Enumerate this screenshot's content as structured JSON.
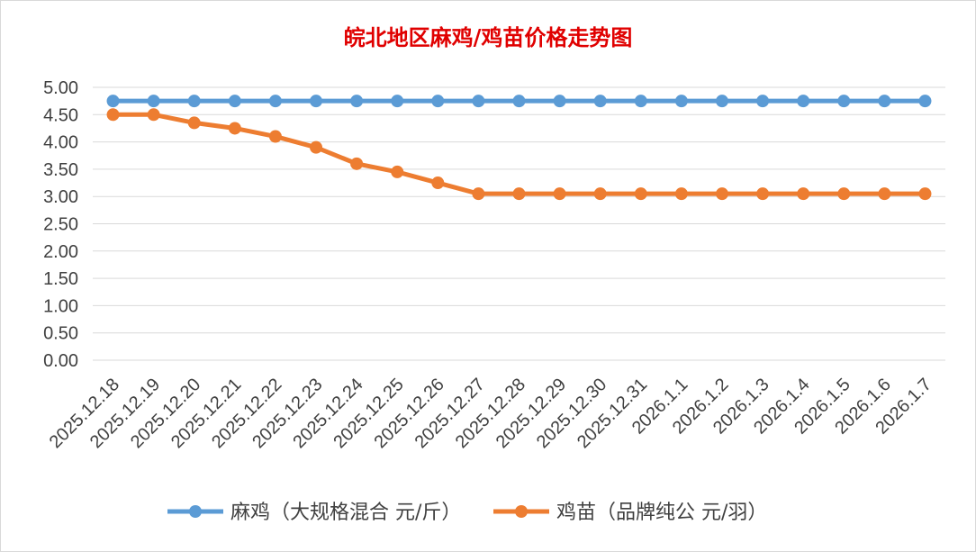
{
  "chart_data": {
    "type": "line",
    "title": "皖北地区麻鸡/鸡苗价格走势图",
    "xlabel": "",
    "ylabel": "",
    "categories": [
      "2025.12.18",
      "2025.12.19",
      "2025.12.20",
      "2025.12.21",
      "2025.12.22",
      "2025.12.23",
      "2025.12.24",
      "2025.12.25",
      "2025.12.26",
      "2025.12.27",
      "2025.12.28",
      "2025.12.29",
      "2025.12.30",
      "2025.12.31",
      "2026.1.1",
      "2026.1.2",
      "2026.1.3",
      "2026.1.4",
      "2026.1.5",
      "2026.1.6",
      "2026.1.7"
    ],
    "ylim": [
      0,
      5
    ],
    "yticks": [
      "0.00",
      "0.50",
      "1.00",
      "1.50",
      "2.00",
      "2.50",
      "3.00",
      "3.50",
      "4.00",
      "4.50",
      "5.00"
    ],
    "grid": true,
    "legend_position": "bottom",
    "series": [
      {
        "name": "麻鸡（大规格混合 元/斤）",
        "color": "#5B9BD5",
        "values": [
          4.75,
          4.75,
          4.75,
          4.75,
          4.75,
          4.75,
          4.75,
          4.75,
          4.75,
          4.75,
          4.75,
          4.75,
          4.75,
          4.75,
          4.75,
          4.75,
          4.75,
          4.75,
          4.75,
          4.75,
          4.75
        ]
      },
      {
        "name": "鸡苗（品牌纯公 元/羽）",
        "color": "#ED7D31",
        "values": [
          4.5,
          4.5,
          4.35,
          4.25,
          4.1,
          3.9,
          3.6,
          3.45,
          3.25,
          3.05,
          3.05,
          3.05,
          3.05,
          3.05,
          3.05,
          3.05,
          3.05,
          3.05,
          3.05,
          3.05,
          3.05
        ]
      }
    ],
    "title_color": "#E00000"
  }
}
